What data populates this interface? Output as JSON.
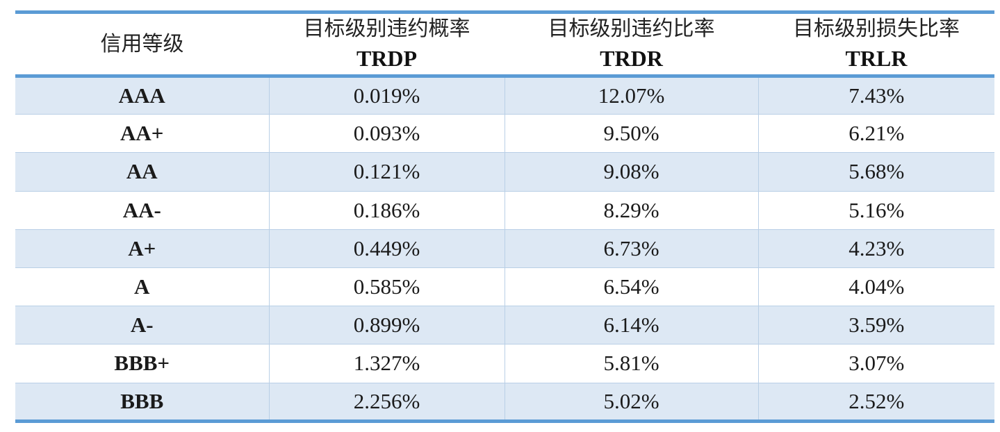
{
  "header": {
    "col0": "信用等级",
    "col1_cn": "目标级别违约概率",
    "col1_en": "TRDP",
    "col2_cn": "目标级别违约比率",
    "col2_en": "TRDR",
    "col3_cn": "目标级别损失比率",
    "col3_en": "TRLR"
  },
  "rows": [
    {
      "grade": "AAA",
      "trdp": "0.019%",
      "trdr": "12.07%",
      "trlr": "7.43%"
    },
    {
      "grade": "AA+",
      "trdp": "0.093%",
      "trdr": "9.50%",
      "trlr": "6.21%"
    },
    {
      "grade": "AA",
      "trdp": "0.121%",
      "trdr": "9.08%",
      "trlr": "5.68%"
    },
    {
      "grade": "AA-",
      "trdp": "0.186%",
      "trdr": "8.29%",
      "trlr": "5.16%"
    },
    {
      "grade": "A+",
      "trdp": "0.449%",
      "trdr": "6.73%",
      "trlr": "4.23%"
    },
    {
      "grade": "A",
      "trdp": "0.585%",
      "trdr": "6.54%",
      "trlr": "4.04%"
    },
    {
      "grade": "A-",
      "trdp": "0.899%",
      "trdr": "6.14%",
      "trlr": "3.59%"
    },
    {
      "grade": "BBB+",
      "trdp": "1.327%",
      "trdr": "5.81%",
      "trlr": "3.07%"
    },
    {
      "grade": "BBB",
      "trdp": "2.256%",
      "trdr": "5.02%",
      "trlr": "2.52%"
    }
  ],
  "colors": {
    "accent_border": "#5b9bd5",
    "band_fill": "#dde8f4",
    "cell_divider": "#b9cfe6"
  }
}
